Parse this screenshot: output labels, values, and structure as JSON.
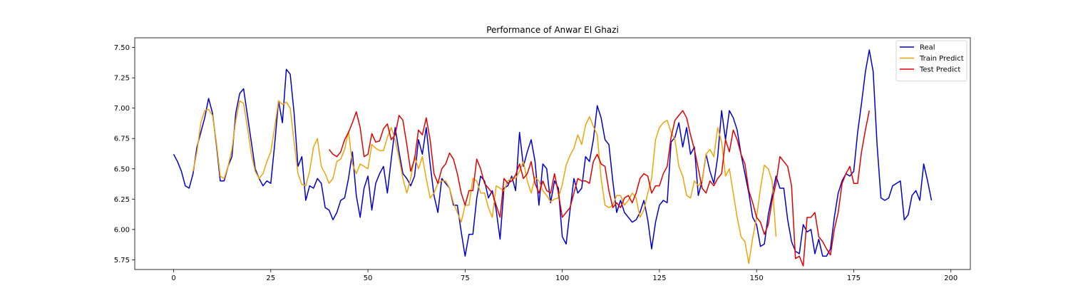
{
  "chart_data": {
    "type": "line",
    "title": "Performance of Anwar El Ghazi",
    "xlabel": "",
    "ylabel": "",
    "xlim": [
      -10,
      205
    ],
    "ylim": [
      5.67,
      7.58
    ],
    "xticks": [
      0,
      25,
      50,
      75,
      100,
      125,
      150,
      175,
      200
    ],
    "xtick_labels": [
      "0",
      "25",
      "50",
      "75",
      "100",
      "125",
      "150",
      "175",
      "200"
    ],
    "yticks": [
      5.75,
      6.0,
      6.25,
      6.5,
      6.75,
      7.0,
      7.25,
      7.5
    ],
    "ytick_labels": [
      "5.75",
      "6.00",
      "6.25",
      "6.50",
      "6.75",
      "7.00",
      "7.25",
      "7.50"
    ],
    "grid": false,
    "legend_position": "top-right",
    "series": [
      {
        "name": "Real",
        "color": "#0000cc",
        "x_start": 0,
        "values": [
          6.62,
          6.56,
          6.48,
          6.36,
          6.34,
          6.46,
          6.68,
          6.8,
          6.92,
          7.08,
          6.96,
          6.7,
          6.4,
          6.4,
          6.52,
          6.6,
          6.96,
          7.12,
          7.16,
          6.94,
          6.72,
          6.5,
          6.42,
          6.36,
          6.4,
          6.38,
          6.7,
          7.06,
          6.88,
          7.32,
          7.28,
          6.96,
          6.52,
          6.6,
          6.24,
          6.36,
          6.34,
          6.42,
          6.38,
          6.18,
          6.16,
          6.08,
          6.14,
          6.24,
          6.26,
          6.42,
          6.64,
          6.28,
          6.1,
          6.34,
          6.44,
          6.16,
          6.38,
          6.46,
          6.52,
          6.3,
          6.58,
          6.84,
          6.64,
          6.46,
          6.42,
          6.36,
          6.44,
          6.74,
          6.62,
          6.84,
          6.54,
          6.28,
          6.14,
          6.42,
          6.38,
          6.34,
          6.2,
          6.2,
          5.98,
          5.78,
          5.96,
          5.96,
          6.26,
          6.44,
          6.4,
          6.26,
          6.32,
          6.16,
          5.92,
          6.34,
          6.36,
          6.44,
          6.32,
          6.8,
          6.52,
          6.64,
          6.74,
          6.56,
          6.2,
          6.54,
          6.5,
          6.22,
          6.4,
          6.34,
          5.94,
          5.88,
          6.16,
          6.42,
          6.3,
          6.34,
          6.6,
          6.56,
          6.74,
          7.02,
          6.92,
          6.74,
          6.7,
          6.4,
          6.14,
          6.24,
          6.14,
          6.1,
          6.06,
          6.08,
          6.14,
          6.24,
          6.08,
          5.84,
          6.06,
          6.2,
          6.24,
          6.22,
          6.72,
          6.76,
          6.88,
          6.68,
          6.84,
          6.62,
          6.68,
          6.28,
          6.4,
          6.62,
          6.48,
          6.38,
          6.6,
          6.98,
          6.74,
          6.98,
          6.92,
          6.82,
          6.62,
          6.46,
          6.3,
          6.1,
          6.04,
          5.86,
          5.88,
          6.12,
          6.28,
          6.44,
          6.34,
          6.34,
          6.08,
          5.9,
          5.82,
          5.8,
          6.04,
          5.98,
          6.0,
          5.8,
          5.92,
          5.78,
          5.78,
          5.84,
          6.1,
          6.3,
          6.4,
          6.46,
          6.44,
          6.48,
          6.8,
          7.04,
          7.3,
          7.48,
          7.3,
          6.7,
          6.26,
          6.24,
          6.26,
          6.36,
          6.38,
          6.4,
          6.08,
          6.12,
          6.28,
          6.32,
          6.24,
          6.54,
          6.4,
          6.24
        ]
      },
      {
        "name": "Train Predict",
        "color": "#f0a30a",
        "x_start": 5,
        "values": [
          6.48,
          6.64,
          6.88,
          6.98,
          6.99,
          6.94,
          6.72,
          6.44,
          6.42,
          6.52,
          6.66,
          6.9,
          7.06,
          7.04,
          6.84,
          6.62,
          6.48,
          6.42,
          6.46,
          6.56,
          6.64,
          6.84,
          7.06,
          7.03,
          7.05,
          7.0,
          6.72,
          6.46,
          6.37,
          6.36,
          6.48,
          6.68,
          6.75,
          6.52,
          6.46,
          6.38,
          6.42,
          6.56,
          6.58,
          6.66,
          6.81,
          6.54,
          6.46,
          6.54,
          6.52,
          6.5,
          6.7,
          6.67,
          6.65,
          6.65,
          6.76,
          6.84,
          6.74,
          6.59,
          6.42,
          6.3,
          6.42,
          6.6,
          6.5,
          6.6,
          6.42,
          6.26,
          6.3,
          6.38,
          6.4,
          6.4,
          6.34,
          6.22,
          6.14,
          6.06,
          6.2,
          6.2,
          6.42,
          6.4,
          6.3,
          6.3,
          6.18,
          6.1,
          6.36,
          6.34,
          6.32,
          6.4,
          6.42,
          6.42,
          6.48,
          6.56,
          6.4,
          6.3,
          6.43,
          6.4,
          6.32,
          6.28,
          6.23,
          6.25,
          6.26,
          6.37,
          6.53,
          6.61,
          6.67,
          6.78,
          6.7,
          6.86,
          6.93,
          6.85,
          6.78,
          6.42,
          6.2,
          6.18,
          6.2,
          6.28,
          6.28,
          6.2,
          6.24,
          6.3,
          6.26,
          6.1,
          6.16,
          6.3,
          6.42,
          6.74,
          6.84,
          6.88,
          6.9,
          6.8,
          6.74,
          6.52,
          6.44,
          6.28,
          6.26,
          6.4,
          6.36,
          6.4,
          6.62,
          6.66,
          6.6,
          6.84,
          6.72,
          6.44,
          6.5,
          6.3,
          6.1,
          5.94,
          5.9,
          5.72,
          5.93,
          6.1,
          6.34,
          6.53,
          6.5,
          6.4,
          5.94
        ]
      },
      {
        "name": "Test Predict",
        "color": "#e00000",
        "x_start": 40,
        "values": [
          6.66,
          6.62,
          6.6,
          6.64,
          6.74,
          6.8,
          6.88,
          6.97,
          6.84,
          6.6,
          6.62,
          6.79,
          6.72,
          6.73,
          6.83,
          6.87,
          6.74,
          6.78,
          6.94,
          6.9,
          6.7,
          6.48,
          6.58,
          6.82,
          6.78,
          6.92,
          6.74,
          6.46,
          6.38,
          6.5,
          6.54,
          6.63,
          6.58,
          6.46,
          6.3,
          6.2,
          6.32,
          6.32,
          6.58,
          6.5,
          6.38,
          6.34,
          6.3,
          6.2,
          6.1,
          6.42,
          6.38,
          6.4,
          6.45,
          6.54,
          6.42,
          6.46,
          6.56,
          6.38,
          6.3,
          6.4,
          6.32,
          6.3,
          6.46,
          6.3,
          6.1,
          6.14,
          6.18,
          6.3,
          6.42,
          6.4,
          6.4,
          6.38,
          6.56,
          6.62,
          6.54,
          6.52,
          6.32,
          6.18,
          6.22,
          6.18,
          6.26,
          6.28,
          6.22,
          6.3,
          6.42,
          6.46,
          6.44,
          6.3,
          6.36,
          6.36,
          6.46,
          6.52,
          6.76,
          6.9,
          6.94,
          6.98,
          6.92,
          6.78,
          6.66,
          6.5,
          6.34,
          6.3,
          6.4,
          6.36,
          6.42,
          6.46,
          6.74,
          6.64,
          6.82,
          6.74,
          6.62,
          6.54,
          6.32,
          6.22,
          6.1,
          6.06,
          5.96,
          6.04,
          6.24,
          6.38,
          6.6,
          6.56,
          6.52,
          6.36,
          5.76,
          5.78,
          5.7,
          6.1,
          6.1,
          6.14,
          5.94,
          5.9,
          5.84,
          5.79,
          6.0,
          6.14,
          6.38,
          6.46,
          6.52,
          6.38,
          6.38,
          6.64,
          6.82,
          6.98
        ]
      }
    ]
  }
}
